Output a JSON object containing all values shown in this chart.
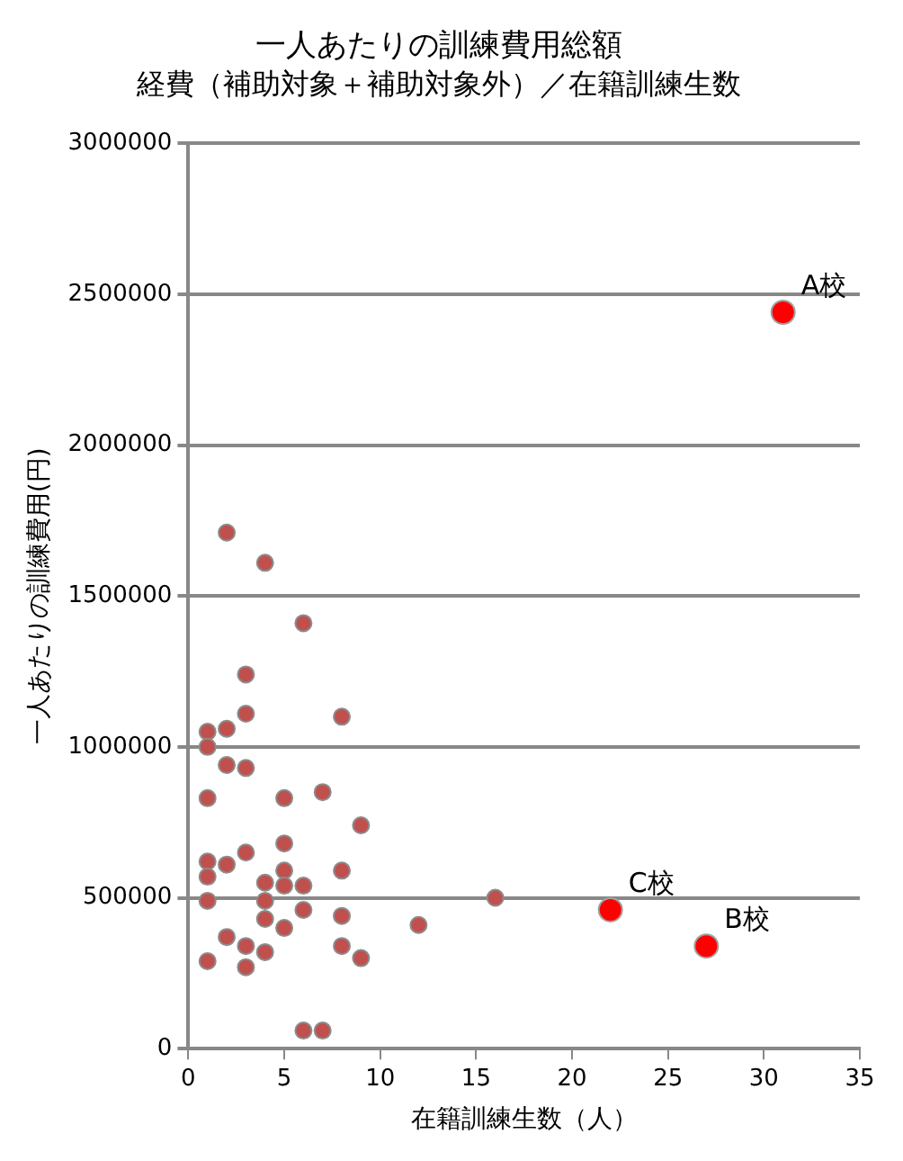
{
  "chart_data": {
    "type": "scatter",
    "title": "一人あたりの訓練費用総額",
    "subtitle": "経費（補助対象＋補助対象外）／在籍訓練生数",
    "xlabel": "在籍訓練生数（人）",
    "ylabel": "一人あたりの訓練費用(円)",
    "xlim": [
      0,
      35
    ],
    "xticks": [
      0,
      5,
      10,
      15,
      20,
      25,
      30,
      35
    ],
    "ylim": [
      0,
      3000000
    ],
    "yticks": [
      0,
      500000,
      1000000,
      1500000,
      2000000,
      2500000,
      3000000
    ],
    "grid": "y",
    "legend": false,
    "marker": "circle",
    "series": [
      {
        "color": "#c0504d",
        "x": [
          1,
          1,
          1,
          1,
          1,
          1,
          1,
          2,
          2,
          2,
          2,
          2,
          3,
          3,
          3,
          3,
          3,
          3,
          4,
          4,
          4,
          4,
          4,
          5,
          5,
          5,
          5,
          5,
          6,
          6,
          6,
          6,
          7,
          7,
          8,
          8,
          8,
          8,
          9,
          9,
          12,
          16
        ],
        "values": [
          1050000,
          1000000,
          830000,
          620000,
          570000,
          490000,
          290000,
          1710000,
          1060000,
          940000,
          610000,
          370000,
          1240000,
          1110000,
          930000,
          650000,
          340000,
          270000,
          1610000,
          550000,
          490000,
          430000,
          320000,
          830000,
          680000,
          590000,
          540000,
          400000,
          1410000,
          540000,
          460000,
          60000,
          850000,
          60000,
          1100000,
          590000,
          440000,
          340000,
          740000,
          300000,
          410000,
          500000
        ]
      },
      {
        "color": "#ff0000",
        "x": [
          31,
          27,
          22
        ],
        "values": [
          2440000,
          340000,
          460000
        ]
      }
    ],
    "annotations": [
      {
        "text": "A校",
        "x": 31,
        "y": 2440000
      },
      {
        "text": "B校",
        "x": 27,
        "y": 340000
      },
      {
        "text": "C校",
        "x": 22,
        "y": 460000
      }
    ]
  }
}
